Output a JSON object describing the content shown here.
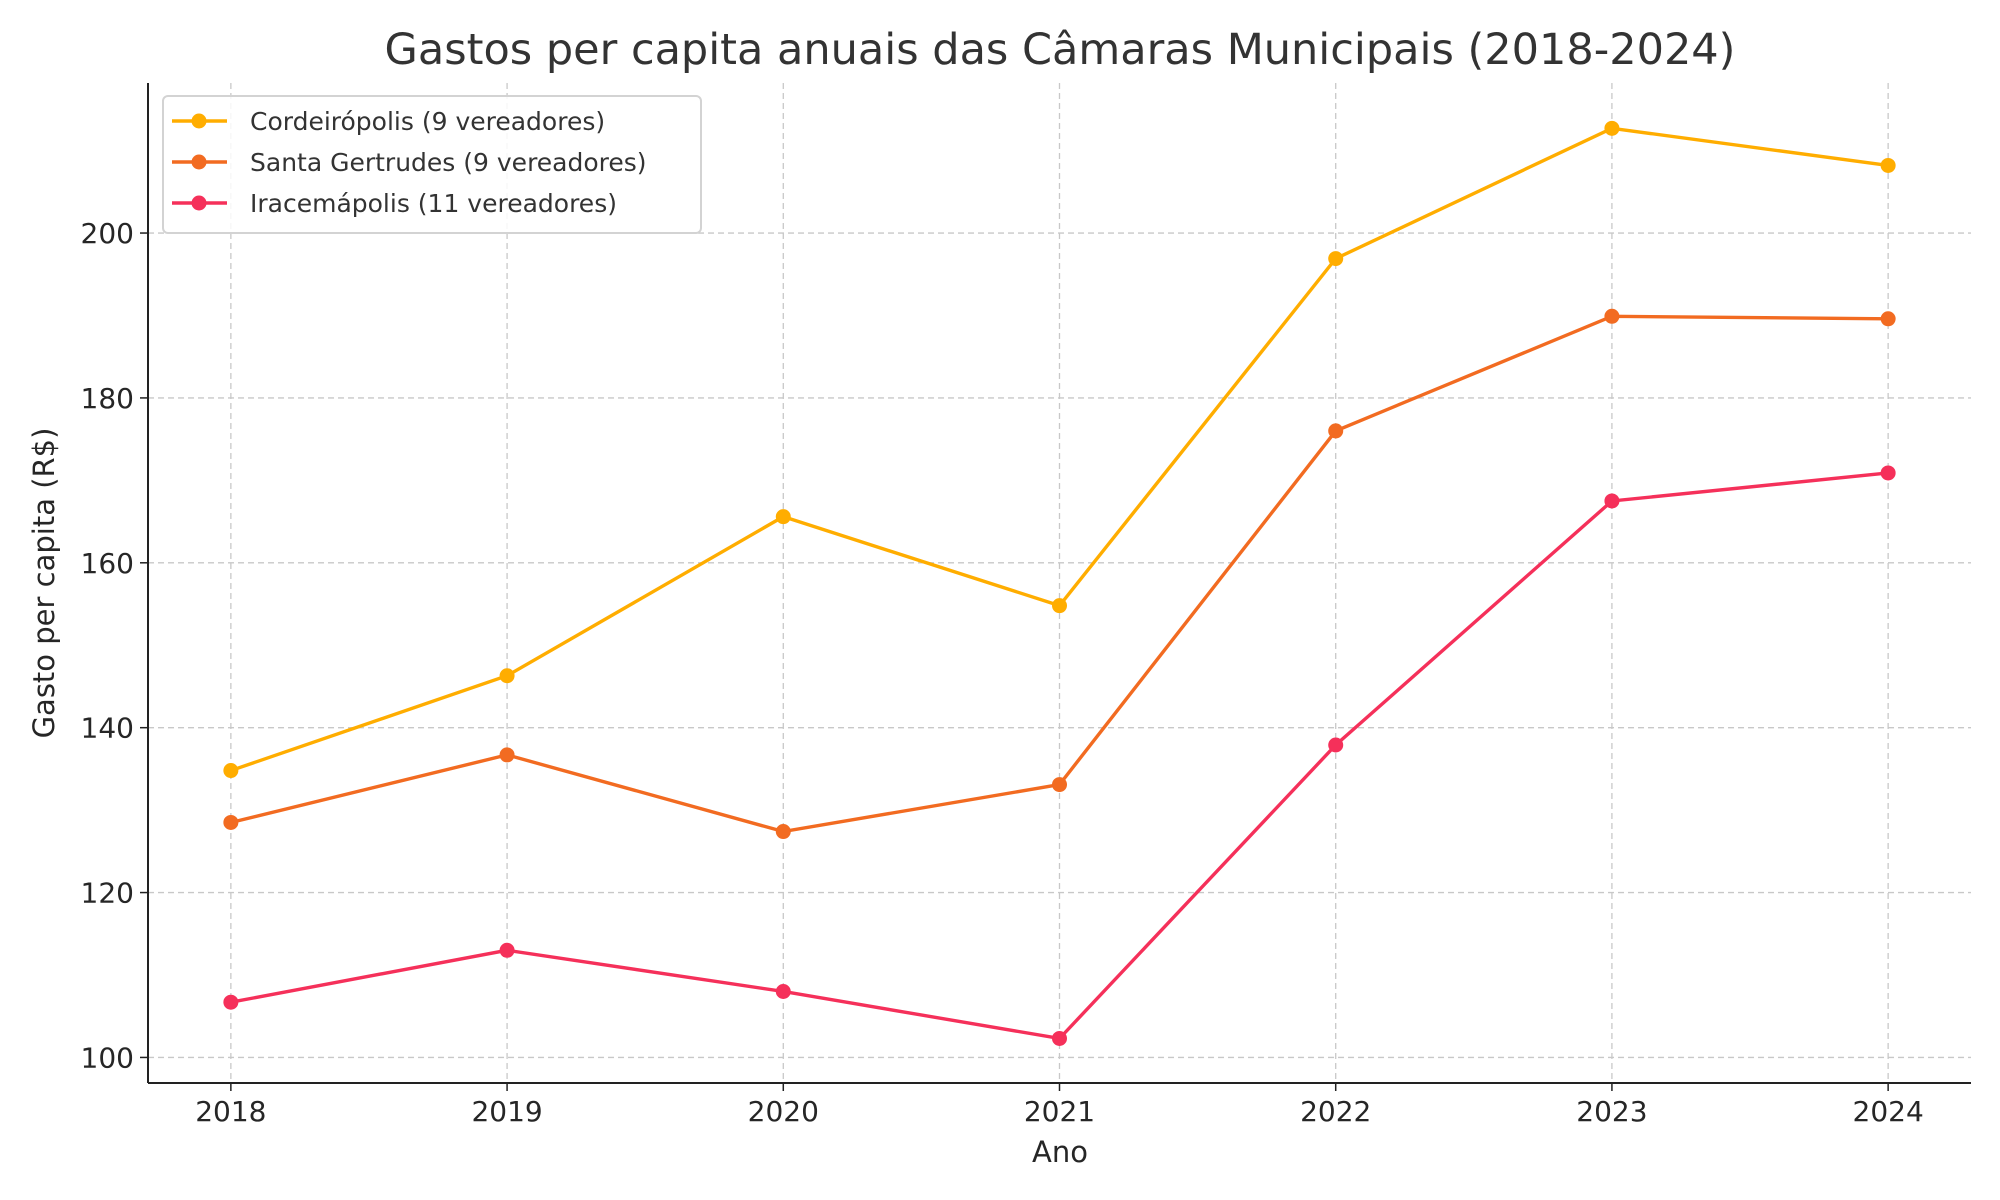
{
  "chart_data": {
    "type": "line",
    "title": "Gastos per capita anuais das Câmaras Municipais (2018-2024)",
    "xlabel": "Ano",
    "ylabel": "Gasto per capita (R$)",
    "x": [
      2018,
      2019,
      2020,
      2021,
      2022,
      2023,
      2024
    ],
    "xlim": [
      2017.7,
      2024.3
    ],
    "ylim": [
      96.9,
      218.2
    ],
    "yticks": [
      100,
      120,
      140,
      160,
      180,
      200
    ],
    "grid": true,
    "legend_position": "top-left",
    "series": [
      {
        "name": "Cordeirópolis (9 vereadores)",
        "color": "#FFAD00",
        "values": [
          134.8,
          146.3,
          165.6,
          154.8,
          196.9,
          212.7,
          208.2
        ]
      },
      {
        "name": "Santa Gertrudes (9 vereadores)",
        "color": "#F26B21",
        "values": [
          128.5,
          136.7,
          127.4,
          133.1,
          176.0,
          189.9,
          189.6
        ]
      },
      {
        "name": "Iracemápolis (11 vereadores)",
        "color": "#F5305A",
        "values": [
          106.7,
          113.0,
          108.0,
          102.3,
          137.9,
          167.5,
          170.9
        ]
      }
    ]
  }
}
